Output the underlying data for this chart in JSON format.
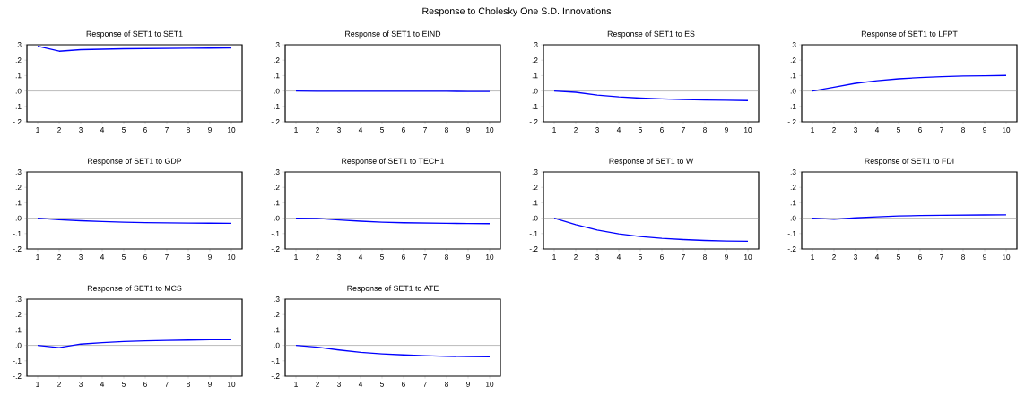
{
  "chart_data": [
    {
      "type": "other",
      "title": "Response to Cholesky One S.D. Innovations"
    },
    {
      "type": "line",
      "title": "Response of SET1 to SET1",
      "x": [
        1,
        2,
        3,
        4,
        5,
        6,
        7,
        8,
        9,
        10
      ],
      "xlim": [
        0.5,
        10.5
      ],
      "xticks": [
        1,
        2,
        3,
        4,
        5,
        6,
        7,
        8,
        9,
        10
      ],
      "ylim": [
        -0.2,
        0.3
      ],
      "yticks": [
        {
          "value": -0.2,
          "label": "-.2"
        },
        {
          "value": -0.1,
          "label": "-.1"
        },
        {
          "value": 0,
          "label": ".0"
        },
        {
          "value": 0.1,
          "label": ".1"
        },
        {
          "value": 0.2,
          "label": ".2"
        },
        {
          "value": 0.3,
          "label": ".3"
        }
      ],
      "ref_lines": [
        {
          "axis": "y",
          "value": 0,
          "color": "#808080"
        }
      ],
      "color": "#0000ff",
      "values": [
        0.29,
        0.258,
        0.268,
        0.271,
        0.274,
        0.275,
        0.276,
        0.277,
        0.278,
        0.279
      ]
    },
    {
      "type": "line",
      "title": "Response of SET1 to EIND",
      "x": [
        1,
        2,
        3,
        4,
        5,
        6,
        7,
        8,
        9,
        10
      ],
      "xlim": [
        0.5,
        10.5
      ],
      "xticks": [
        1,
        2,
        3,
        4,
        5,
        6,
        7,
        8,
        9,
        10
      ],
      "ylim": [
        -0.2,
        0.3
      ],
      "yticks": [
        {
          "value": -0.2,
          "label": "-.2"
        },
        {
          "value": -0.1,
          "label": "-.1"
        },
        {
          "value": 0,
          "label": ".0"
        },
        {
          "value": 0.1,
          "label": ".1"
        },
        {
          "value": 0.2,
          "label": ".2"
        },
        {
          "value": 0.3,
          "label": ".3"
        }
      ],
      "ref_lines": [
        {
          "axis": "y",
          "value": 0,
          "color": "#808080"
        }
      ],
      "color": "#0000ff",
      "values": [
        0,
        -0.002,
        -0.002,
        -0.002,
        -0.002,
        -0.002,
        -0.002,
        -0.002,
        -0.003,
        -0.003
      ]
    },
    {
      "type": "line",
      "title": "Response of SET1 to ES",
      "x": [
        1,
        2,
        3,
        4,
        5,
        6,
        7,
        8,
        9,
        10
      ],
      "xlim": [
        0.5,
        10.5
      ],
      "xticks": [
        1,
        2,
        3,
        4,
        5,
        6,
        7,
        8,
        9,
        10
      ],
      "ylim": [
        -0.2,
        0.3
      ],
      "yticks": [
        {
          "value": -0.2,
          "label": "-.2"
        },
        {
          "value": -0.1,
          "label": "-.1"
        },
        {
          "value": 0,
          "label": ".0"
        },
        {
          "value": 0.1,
          "label": ".1"
        },
        {
          "value": 0.2,
          "label": ".2"
        },
        {
          "value": 0.3,
          "label": ".3"
        }
      ],
      "ref_lines": [
        {
          "axis": "y",
          "value": 0,
          "color": "#808080"
        }
      ],
      "color": "#0000ff",
      "values": [
        0,
        -0.008,
        -0.026,
        -0.038,
        -0.046,
        -0.051,
        -0.055,
        -0.058,
        -0.06,
        -0.062
      ]
    },
    {
      "type": "line",
      "title": "Response of SET1 to LFPT",
      "x": [
        1,
        2,
        3,
        4,
        5,
        6,
        7,
        8,
        9,
        10
      ],
      "xlim": [
        0.5,
        10.5
      ],
      "xticks": [
        1,
        2,
        3,
        4,
        5,
        6,
        7,
        8,
        9,
        10
      ],
      "ylim": [
        -0.2,
        0.3
      ],
      "yticks": [
        {
          "value": -0.2,
          "label": "-.2"
        },
        {
          "value": -0.1,
          "label": "-.1"
        },
        {
          "value": 0,
          "label": ".0"
        },
        {
          "value": 0.1,
          "label": ".1"
        },
        {
          "value": 0.2,
          "label": ".2"
        },
        {
          "value": 0.3,
          "label": ".3"
        }
      ],
      "ref_lines": [
        {
          "axis": "y",
          "value": 0,
          "color": "#808080"
        }
      ],
      "color": "#0000ff",
      "values": [
        0,
        0.025,
        0.05,
        0.067,
        0.079,
        0.087,
        0.093,
        0.097,
        0.099,
        0.101
      ]
    },
    {
      "type": "line",
      "title": "Response of SET1 to GDP",
      "x": [
        1,
        2,
        3,
        4,
        5,
        6,
        7,
        8,
        9,
        10
      ],
      "xlim": [
        0.5,
        10.5
      ],
      "xticks": [
        1,
        2,
        3,
        4,
        5,
        6,
        7,
        8,
        9,
        10
      ],
      "ylim": [
        -0.2,
        0.3
      ],
      "yticks": [
        {
          "value": -0.2,
          "label": "-.2"
        },
        {
          "value": -0.1,
          "label": "-.1"
        },
        {
          "value": 0,
          "label": ".0"
        },
        {
          "value": 0.1,
          "label": ".1"
        },
        {
          "value": 0.2,
          "label": ".2"
        },
        {
          "value": 0.3,
          "label": ".3"
        }
      ],
      "ref_lines": [
        {
          "axis": "y",
          "value": 0,
          "color": "#808080"
        }
      ],
      "color": "#0000ff",
      "values": [
        0,
        -0.01,
        -0.017,
        -0.022,
        -0.026,
        -0.029,
        -0.031,
        -0.032,
        -0.033,
        -0.034
      ]
    },
    {
      "type": "line",
      "title": "Response of SET1 to TECH1",
      "x": [
        1,
        2,
        3,
        4,
        5,
        6,
        7,
        8,
        9,
        10
      ],
      "xlim": [
        0.5,
        10.5
      ],
      "xticks": [
        1,
        2,
        3,
        4,
        5,
        6,
        7,
        8,
        9,
        10
      ],
      "ylim": [
        -0.2,
        0.3
      ],
      "yticks": [
        {
          "value": -0.2,
          "label": "-.2"
        },
        {
          "value": -0.1,
          "label": "-.1"
        },
        {
          "value": 0,
          "label": ".0"
        },
        {
          "value": 0.1,
          "label": ".1"
        },
        {
          "value": 0.2,
          "label": ".2"
        },
        {
          "value": 0.3,
          "label": ".3"
        }
      ],
      "ref_lines": [
        {
          "axis": "y",
          "value": 0,
          "color": "#808080"
        }
      ],
      "color": "#0000ff",
      "values": [
        0,
        -0.002,
        -0.012,
        -0.02,
        -0.026,
        -0.03,
        -0.032,
        -0.034,
        -0.035,
        -0.036
      ]
    },
    {
      "type": "line",
      "title": "Response of SET1 to W",
      "x": [
        1,
        2,
        3,
        4,
        5,
        6,
        7,
        8,
        9,
        10
      ],
      "xlim": [
        0.5,
        10.5
      ],
      "xticks": [
        1,
        2,
        3,
        4,
        5,
        6,
        7,
        8,
        9,
        10
      ],
      "ylim": [
        -0.2,
        0.3
      ],
      "yticks": [
        {
          "value": -0.2,
          "label": "-.2"
        },
        {
          "value": -0.1,
          "label": "-.1"
        },
        {
          "value": 0,
          "label": ".0"
        },
        {
          "value": 0.1,
          "label": ".1"
        },
        {
          "value": 0.2,
          "label": ".2"
        },
        {
          "value": 0.3,
          "label": ".3"
        }
      ],
      "ref_lines": [
        {
          "axis": "y",
          "value": 0,
          "color": "#808080"
        }
      ],
      "color": "#0000ff",
      "values": [
        0,
        -0.042,
        -0.077,
        -0.102,
        -0.119,
        -0.131,
        -0.139,
        -0.145,
        -0.148,
        -0.15
      ]
    },
    {
      "type": "line",
      "title": "Response of SET1 to FDI",
      "x": [
        1,
        2,
        3,
        4,
        5,
        6,
        7,
        8,
        9,
        10
      ],
      "xlim": [
        0.5,
        10.5
      ],
      "xticks": [
        1,
        2,
        3,
        4,
        5,
        6,
        7,
        8,
        9,
        10
      ],
      "ylim": [
        -0.2,
        0.3
      ],
      "yticks": [
        {
          "value": -0.2,
          "label": "-.2"
        },
        {
          "value": -0.1,
          "label": "-.1"
        },
        {
          "value": 0,
          "label": ".0"
        },
        {
          "value": 0.1,
          "label": ".1"
        },
        {
          "value": 0.2,
          "label": ".2"
        },
        {
          "value": 0.3,
          "label": ".3"
        }
      ],
      "ref_lines": [
        {
          "axis": "y",
          "value": 0,
          "color": "#808080"
        }
      ],
      "color": "#0000ff",
      "values": [
        0,
        -0.007,
        0.002,
        0.009,
        0.014,
        0.017,
        0.019,
        0.02,
        0.021,
        0.022
      ]
    },
    {
      "type": "line",
      "title": "Response of SET1 to MCS",
      "x": [
        1,
        2,
        3,
        4,
        5,
        6,
        7,
        8,
        9,
        10
      ],
      "xlim": [
        0.5,
        10.5
      ],
      "xticks": [
        1,
        2,
        3,
        4,
        5,
        6,
        7,
        8,
        9,
        10
      ],
      "ylim": [
        -0.2,
        0.3
      ],
      "yticks": [
        {
          "value": -0.2,
          "label": "-.2"
        },
        {
          "value": -0.1,
          "label": "-.1"
        },
        {
          "value": 0,
          "label": ".0"
        },
        {
          "value": 0.1,
          "label": ".1"
        },
        {
          "value": 0.2,
          "label": ".2"
        },
        {
          "value": 0.3,
          "label": ".3"
        }
      ],
      "ref_lines": [
        {
          "axis": "y",
          "value": 0,
          "color": "#808080"
        }
      ],
      "color": "#0000ff",
      "values": [
        0,
        -0.015,
        0.008,
        0.017,
        0.025,
        0.029,
        0.032,
        0.034,
        0.036,
        0.037
      ]
    },
    {
      "type": "line",
      "title": "Response of SET1 to ATE",
      "x": [
        1,
        2,
        3,
        4,
        5,
        6,
        7,
        8,
        9,
        10
      ],
      "xlim": [
        0.5,
        10.5
      ],
      "xticks": [
        1,
        2,
        3,
        4,
        5,
        6,
        7,
        8,
        9,
        10
      ],
      "ylim": [
        -0.2,
        0.3
      ],
      "yticks": [
        {
          "value": -0.2,
          "label": "-.2"
        },
        {
          "value": -0.1,
          "label": "-.1"
        },
        {
          "value": 0,
          "label": ".0"
        },
        {
          "value": 0.1,
          "label": ".1"
        },
        {
          "value": 0.2,
          "label": ".2"
        },
        {
          "value": 0.3,
          "label": ".3"
        }
      ],
      "ref_lines": [
        {
          "axis": "y",
          "value": 0,
          "color": "#808080"
        }
      ],
      "color": "#0000ff",
      "values": [
        0,
        -0.012,
        -0.03,
        -0.045,
        -0.055,
        -0.062,
        -0.067,
        -0.071,
        -0.073,
        -0.074
      ]
    }
  ]
}
